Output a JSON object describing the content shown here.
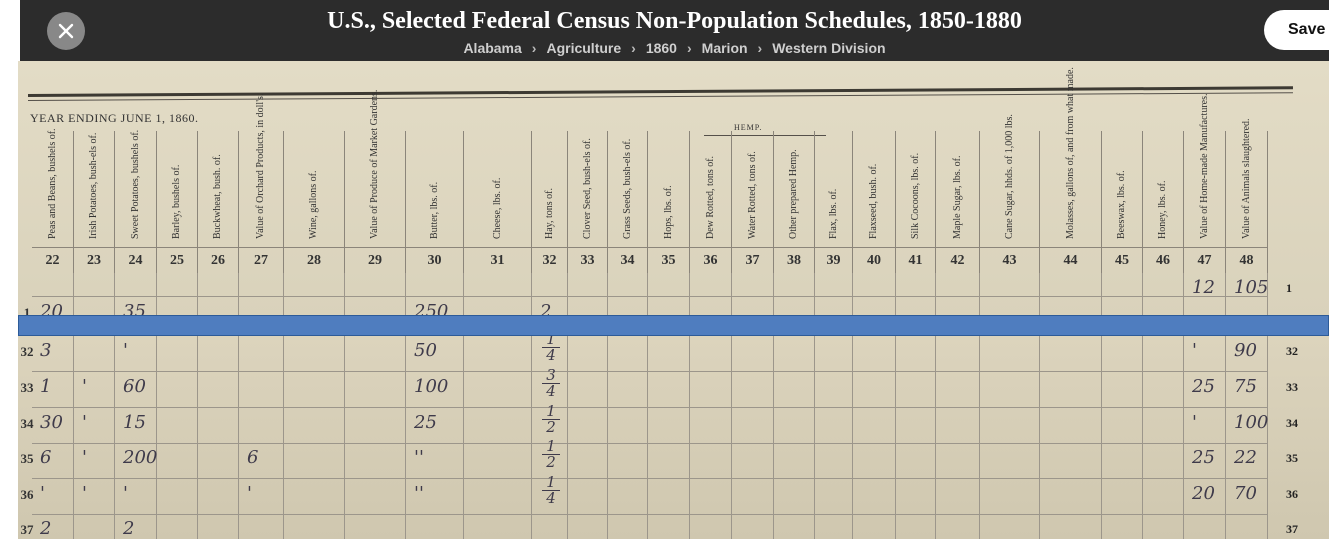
{
  "header": {
    "title": "U.S., Selected Federal Census Non-Population Schedules, 1850-1880",
    "breadcrumbs": [
      "Alabama",
      "Agriculture",
      "1860",
      "Marion",
      "Western Division"
    ],
    "save_label": "Save",
    "close_icon": "close-icon"
  },
  "document": {
    "year_heading": "YEAR ENDING JUNE 1, 1860.",
    "hemp_label": "HEMP.",
    "columns": [
      {
        "num": "22",
        "label": "Peas and Beans, bushels of."
      },
      {
        "num": "23",
        "label": "Irish Potatoes, bush-els of."
      },
      {
        "num": "24",
        "label": "Sweet Potatoes, bushels of."
      },
      {
        "num": "25",
        "label": "Barley, bushels of."
      },
      {
        "num": "26",
        "label": "Buckwheat, bush. of."
      },
      {
        "num": "27",
        "label": "Value of Orchard Products, in doll's."
      },
      {
        "num": "28",
        "label": "Wine, gallons of."
      },
      {
        "num": "29",
        "label": "Value of Produce of Market Gardens."
      },
      {
        "num": "30",
        "label": "Butter, lbs. of."
      },
      {
        "num": "31",
        "label": "Cheese, lbs. of."
      },
      {
        "num": "32",
        "label": "Hay, tons of."
      },
      {
        "num": "33",
        "label": "Clover Seed, bush-els of."
      },
      {
        "num": "34",
        "label": "Grass Seeds, bush-els of."
      },
      {
        "num": "35",
        "label": "Hops, lbs. of."
      },
      {
        "num": "36",
        "label": "Dew Rotted, tons of."
      },
      {
        "num": "37",
        "label": "Water Rotted, tons of."
      },
      {
        "num": "38",
        "label": "Other prepared Hemp."
      },
      {
        "num": "39",
        "label": "Flax, lbs. of."
      },
      {
        "num": "40",
        "label": "Flaxseed, bush. of."
      },
      {
        "num": "41",
        "label": "Silk Cocoons, lbs. of."
      },
      {
        "num": "42",
        "label": "Maple Sugar, lbs. of."
      },
      {
        "num": "43",
        "label": "Cane Sugar, hhds. of 1,000 lbs."
      },
      {
        "num": "44",
        "label": "Molasses, gallons of, and from what made."
      },
      {
        "num": "45",
        "label": "Beeswax, lbs. of."
      },
      {
        "num": "46",
        "label": "Honey, lbs. of."
      },
      {
        "num": "47",
        "label": "Value of Home-made Manufactures."
      },
      {
        "num": "48",
        "label": "Value of Animals slaughtered."
      }
    ],
    "top_rows": [
      {
        "row": "",
        "c47": "12",
        "c48": "105",
        "right": "1"
      },
      {
        "row": "1",
        "c22": "20",
        "c24": "35",
        "c30": "250",
        "c32": "2"
      }
    ],
    "bottom_rows": [
      {
        "row": "32",
        "c22": "3",
        "c23": "",
        "c24": "'",
        "c30": "50",
        "c32": "1/4",
        "c47": "'",
        "c48": "90",
        "right": "32"
      },
      {
        "row": "33",
        "c22": "1",
        "c23": "'",
        "c24": "60",
        "c30": "100",
        "c32": "3/4",
        "c47": "25",
        "c48": "75",
        "right": "33"
      },
      {
        "row": "34",
        "c22": "30",
        "c23": "'",
        "c24": "15",
        "c30": "25",
        "c32": "1/2",
        "c47": "'",
        "c48": "100",
        "right": "34"
      },
      {
        "row": "35",
        "c22": "6",
        "c23": "'",
        "c24": "200",
        "c27": "6",
        "c30": "''",
        "c32": "1/2",
        "c47": "25",
        "c48": "22",
        "right": "35"
      },
      {
        "row": "36",
        "c22": "'",
        "c23": "'",
        "c24": "'",
        "c27": "'",
        "c30": "''",
        "c32": "1/4",
        "c47": "20",
        "c48": "70",
        "right": "36"
      },
      {
        "row": "37",
        "c22": "2",
        "c24": "2",
        "right": "37"
      }
    ]
  }
}
